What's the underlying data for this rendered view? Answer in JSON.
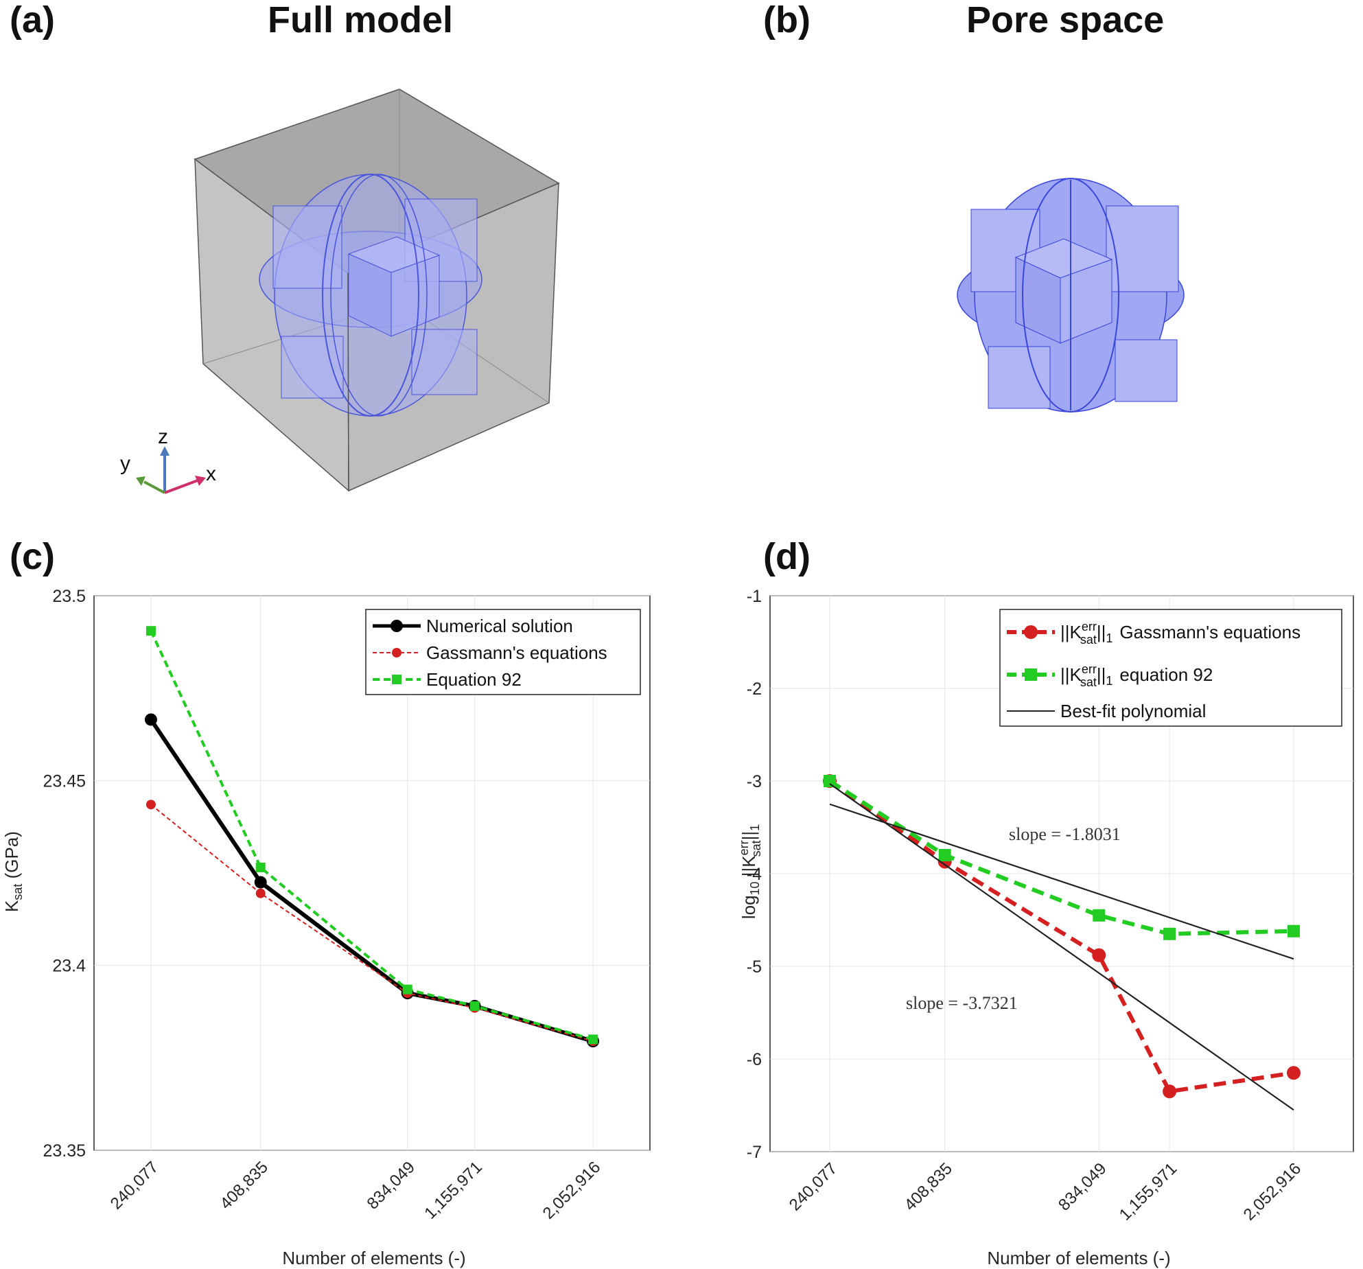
{
  "panels": {
    "a": {
      "label": "(a)",
      "title": "Full model"
    },
    "b": {
      "label": "(b)",
      "title": "Pore space"
    },
    "c": {
      "label": "(c)"
    },
    "d": {
      "label": "(d)"
    }
  },
  "axes_triad": {
    "x": "x",
    "y": "y",
    "z": "z"
  },
  "colors": {
    "numerical": "#000000",
    "gassmann": "#d42020",
    "eq92": "#22cc22",
    "fit": "#222222",
    "pore": "#9fa6f5",
    "box": "#b9b9b9"
  },
  "chart_data": [
    {
      "type": "line",
      "title": "",
      "xlabel": "Number of elements (-)",
      "ylabel_main": "K",
      "ylabel_sub": "sat",
      "ylabel_unit": " (GPa)",
      "x": [
        240077,
        408835,
        834049,
        1155971,
        2052916
      ],
      "xtick_labels": [
        "240,077",
        "408,835",
        "834,049",
        "1,155,971",
        "2,052,916"
      ],
      "ylim": [
        23.35,
        23.5
      ],
      "yticks": [
        23.35,
        23.4,
        23.45,
        23.5
      ],
      "ytick_labels": [
        "23.35",
        "23.4",
        "23.45",
        "23.5"
      ],
      "grid": true,
      "legend_position": "top-right",
      "series": [
        {
          "name": "Numerical solution",
          "values": [
            23.4665,
            23.4225,
            23.3925,
            23.389,
            23.3795
          ]
        },
        {
          "name": "Gassmann's equations",
          "values": [
            23.4435,
            23.4195,
            23.3925,
            23.3885,
            23.3795
          ]
        },
        {
          "name": "Equation 92",
          "values": [
            23.4905,
            23.4265,
            23.3935,
            23.389,
            23.38
          ]
        }
      ]
    },
    {
      "type": "line",
      "title": "",
      "xlabel": "Number of elements (-)",
      "ylabel_pre": "log",
      "ylabel_pre_sub": "10",
      "ylabel_norm_open": " ||K",
      "ylabel_sup": "err",
      "ylabel_sub": "sat",
      "ylabel_norm_close": "||",
      "ylabel_norm_sub": "1",
      "x": [
        240077,
        408835,
        834049,
        1155971,
        2052916
      ],
      "xtick_labels": [
        "240,077",
        "408,835",
        "834,049",
        "1,155,971",
        "2,052,916"
      ],
      "ylim": [
        -7,
        -1
      ],
      "yticks": [
        -7,
        -6,
        -5,
        -4,
        -3,
        -2,
        -1
      ],
      "ytick_labels": [
        "-7",
        "-6",
        "-5",
        "-4",
        "-3",
        "-2",
        "-1"
      ],
      "grid": true,
      "legend_position": "top-right",
      "legend_norm_open": "||K",
      "legend_sup": "err",
      "legend_sub": "sat",
      "legend_norm_close": "||",
      "legend_norm_sub": "1",
      "series": [
        {
          "name": "Gassmann's equations",
          "values": [
            -3.0,
            -3.87,
            -4.88,
            -6.35,
            -6.15
          ]
        },
        {
          "name": "equation 92",
          "values": [
            -3.0,
            -3.8,
            -4.45,
            -4.65,
            -4.62
          ]
        },
        {
          "name": "Best-fit polynomial",
          "fit_lines": [
            {
              "x_start": 240077,
              "y_start": -3.25,
              "x_end": 2052916,
              "y_end": -4.92,
              "slope_label": "slope = -1.8031"
            },
            {
              "x_start": 240077,
              "y_start": -3.03,
              "x_end": 2052916,
              "y_end": -6.55,
              "slope_label": "slope = -3.7321"
            }
          ]
        }
      ]
    }
  ]
}
